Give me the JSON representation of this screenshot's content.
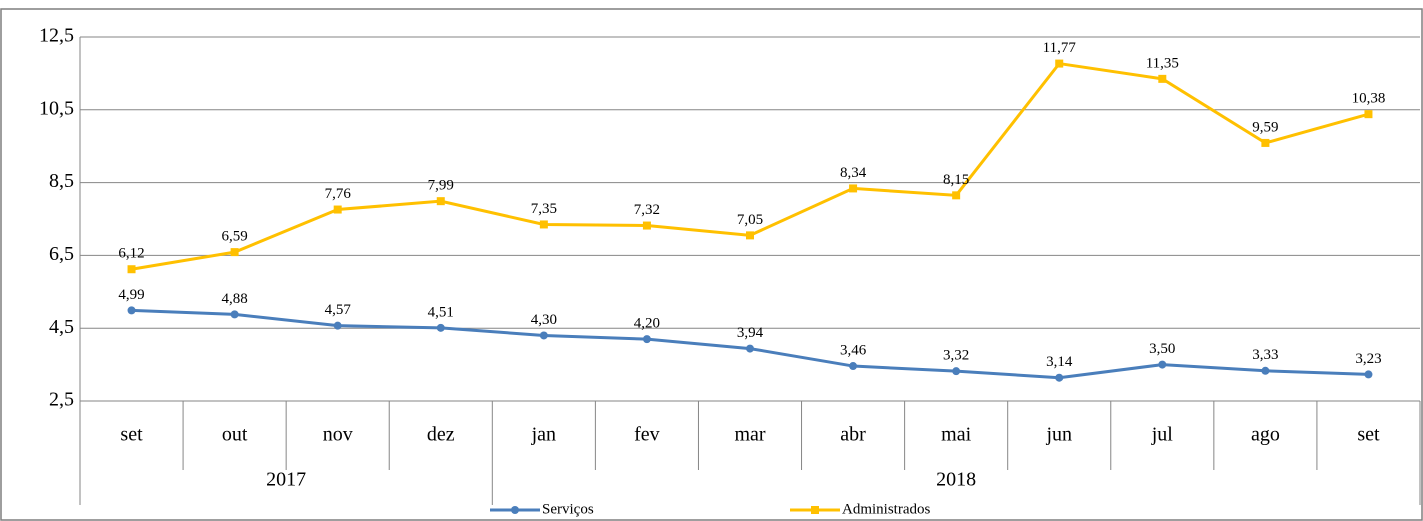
{
  "chart_data": {
    "type": "line",
    "categories": [
      "set",
      "out",
      "nov",
      "dez",
      "jan",
      "fev",
      "mar",
      "abr",
      "mai",
      "jun",
      "jul",
      "ago",
      "set"
    ],
    "category_groups": [
      "2017",
      null,
      null,
      null,
      "2018",
      null,
      null,
      null,
      null,
      null,
      null,
      null,
      null
    ],
    "series": [
      {
        "name": "Serviços",
        "color": "#4a7ebb",
        "marker": "circle",
        "values": [
          4.99,
          4.88,
          4.57,
          4.51,
          4.3,
          4.2,
          3.94,
          3.46,
          3.32,
          3.14,
          3.5,
          3.33,
          3.23
        ],
        "value_labels": [
          "4,99",
          "4,88",
          "4,57",
          "4,51",
          "4,30",
          "4,20",
          "3,94",
          "3,46",
          "3,32",
          "3,14",
          "3,50",
          "3,33",
          "3,23"
        ]
      },
      {
        "name": "Administrados",
        "color": "#ffc000",
        "marker": "square",
        "values": [
          6.12,
          6.59,
          7.76,
          7.99,
          7.35,
          7.32,
          7.05,
          8.34,
          8.15,
          11.77,
          11.35,
          9.59,
          10.38
        ],
        "value_labels": [
          "6,12",
          "6,59",
          "7,76",
          "7,99",
          "7,35",
          "7,32",
          "7,05",
          "8,34",
          "8,15",
          "11,77",
          "11,35",
          "9,59",
          "10,38"
        ]
      }
    ],
    "ylim": [
      2.5,
      12.5
    ],
    "yticks": [
      {
        "value": 2.5,
        "label": "2,5"
      },
      {
        "value": 4.5,
        "label": "4,5"
      },
      {
        "value": 6.5,
        "label": "6,5"
      },
      {
        "value": 8.5,
        "label": "8,5"
      },
      {
        "value": 10.5,
        "label": "10,5"
      },
      {
        "value": 12.5,
        "label": "12,5"
      }
    ],
    "grid": true,
    "legend": "bottom"
  }
}
